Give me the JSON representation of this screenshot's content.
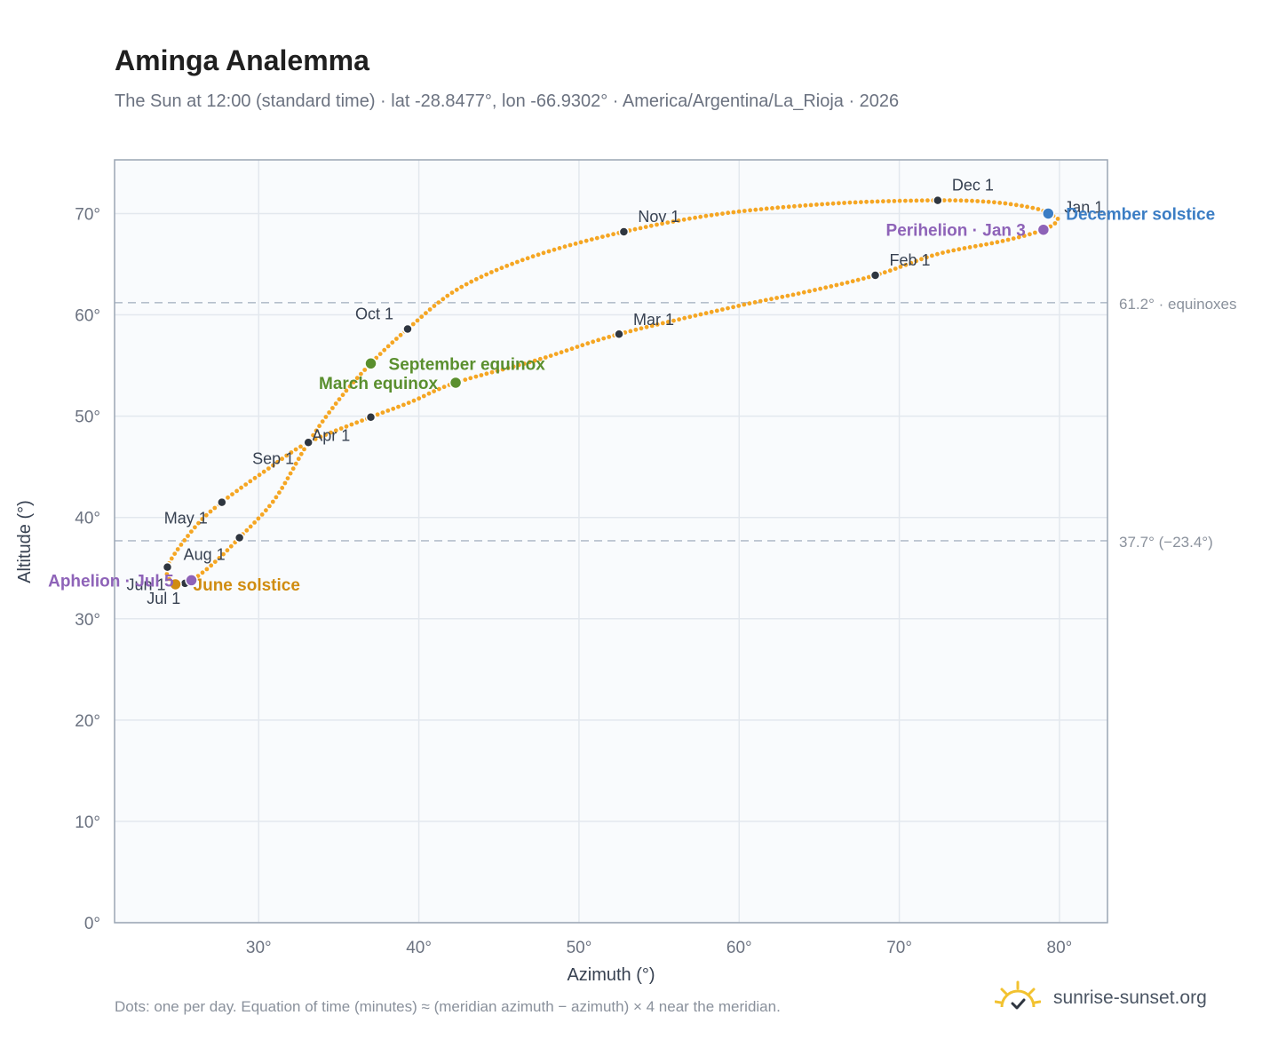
{
  "header": {
    "title": "Aminga Analemma",
    "subtitle": "The Sun at 12:00 (standard time) · lat -28.8477°, lon -66.9302° · America/Argentina/La_Rioja · 2026"
  },
  "footer": {
    "note": "Dots: one per day. Equation of time (minutes) ≈ (meridian azimuth − azimuth) × 4 near the meridian.",
    "brand": "sunrise-sunset.org"
  },
  "colors": {
    "curve": "#f5a623",
    "month_dot": "#2f3640",
    "equinox": "#5a8f2e",
    "june_solstice": "#d08c10",
    "december_solstice": "#3b7dc4",
    "apsis": "#8e63b8",
    "reference_line": "#b5bfcc",
    "plot_bg": "#f9fbfd"
  },
  "chart_data": {
    "type": "scatter",
    "xlabel": "Azimuth (°)",
    "ylabel": "Altitude (°)",
    "xlim": [
      21,
      83
    ],
    "ylim": [
      0,
      75.3
    ],
    "x_ticks": [
      30,
      40,
      50,
      60,
      70,
      80
    ],
    "x_tick_labels": [
      "30°",
      "40°",
      "50°",
      "60°",
      "70°",
      "80°"
    ],
    "y_ticks": [
      0,
      10,
      20,
      30,
      40,
      50,
      60,
      70
    ],
    "y_tick_labels": [
      "0°",
      "10°",
      "20°",
      "30°",
      "40°",
      "50°",
      "60°",
      "70°"
    ],
    "grid": true,
    "analemma_path": [
      [
        79.3,
        70.0
      ],
      [
        79.9,
        69.4
      ],
      [
        79.0,
        68.4
      ],
      [
        76.5,
        67.3
      ],
      [
        72.4,
        66.0
      ],
      [
        68.5,
        63.9
      ],
      [
        64.0,
        62.2
      ],
      [
        60.0,
        60.9
      ],
      [
        52.5,
        58.1
      ],
      [
        47.5,
        55.6
      ],
      [
        42.3,
        53.3
      ],
      [
        39.5,
        51.4
      ],
      [
        37.0,
        49.9
      ],
      [
        33.1,
        47.4
      ],
      [
        30.5,
        44.7
      ],
      [
        27.7,
        41.5
      ],
      [
        26.0,
        39.0
      ],
      [
        24.3,
        35.1
      ],
      [
        24.8,
        33.4
      ],
      [
        25.8,
        33.8
      ],
      [
        27.2,
        35.5
      ],
      [
        28.8,
        38.0
      ],
      [
        31.0,
        41.8
      ],
      [
        33.1,
        47.4
      ],
      [
        35.0,
        51.6
      ],
      [
        37.0,
        55.2
      ],
      [
        39.3,
        58.6
      ],
      [
        42.5,
        62.6
      ],
      [
        47.0,
        65.7
      ],
      [
        52.8,
        68.2
      ],
      [
        59.0,
        70.0
      ],
      [
        66.0,
        71.0
      ],
      [
        72.4,
        71.3
      ],
      [
        76.0,
        71.1
      ],
      [
        78.5,
        70.5
      ],
      [
        79.3,
        70.0
      ]
    ],
    "month_markers": [
      {
        "label": "Jan 1",
        "x": 79.3,
        "y": 70.0
      },
      {
        "label": "Feb 1",
        "x": 68.5,
        "y": 63.9
      },
      {
        "label": "Mar 1",
        "x": 52.5,
        "y": 58.1
      },
      {
        "label": "",
        "x": 37.0,
        "y": 49.9
      },
      {
        "label": "Apr 1",
        "x": 33.1,
        "y": 47.4
      },
      {
        "label": "May 1",
        "x": 27.7,
        "y": 41.5
      },
      {
        "label": "Jun 1",
        "x": 24.3,
        "y": 35.1
      },
      {
        "label": "Jul 1",
        "x": 25.4,
        "y": 33.5
      },
      {
        "label": "Aug 1",
        "x": 28.8,
        "y": 38.0
      },
      {
        "label": "Sep 1",
        "x": 33.1,
        "y": 47.4
      },
      {
        "label": "Oct 1",
        "x": 39.3,
        "y": 58.6
      },
      {
        "label": "Nov 1",
        "x": 52.8,
        "y": 68.2
      },
      {
        "label": "Dec 1",
        "x": 72.4,
        "y": 71.3
      }
    ],
    "events": [
      {
        "label": "December solstice",
        "x": 79.3,
        "y": 70.0,
        "color_key": "december_solstice",
        "side": "right"
      },
      {
        "label": "Perihelion · Jan 3",
        "x": 79.0,
        "y": 68.4,
        "color_key": "apsis",
        "side": "left"
      },
      {
        "label": "September equinox",
        "x": 37.0,
        "y": 55.2,
        "color_key": "equinox",
        "side": "right"
      },
      {
        "label": "March equinox",
        "x": 42.3,
        "y": 53.3,
        "color_key": "equinox",
        "side": "left"
      },
      {
        "label": "June solstice",
        "x": 24.8,
        "y": 33.4,
        "color_key": "june_solstice",
        "side": "right"
      },
      {
        "label": "Aphelion · Jul 5",
        "x": 25.8,
        "y": 33.8,
        "color_key": "apsis",
        "side": "left"
      }
    ],
    "reference_lines": [
      {
        "y": 61.2,
        "label": "61.2° · equinoxes"
      },
      {
        "y": 37.7,
        "label": "37.7° (−23.4°)"
      }
    ]
  }
}
